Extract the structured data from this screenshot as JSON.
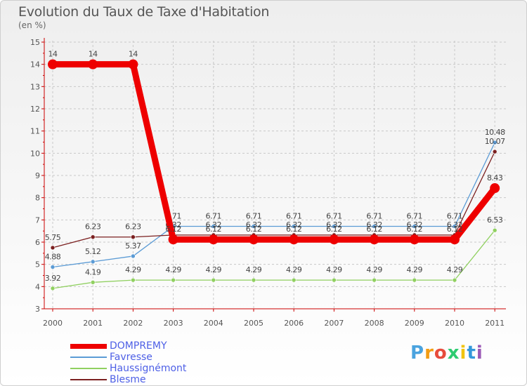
{
  "chart_data": {
    "type": "line",
    "title": "Evolution du Taux de Taxe d'Habitation",
    "subtitle": "(en %)",
    "x": [
      "2000",
      "2001",
      "2002",
      "2003",
      "2004",
      "2005",
      "2006",
      "2007",
      "2008",
      "2009",
      "2010",
      "2011"
    ],
    "ylim": [
      3,
      15
    ],
    "yticks": [
      "3",
      "4",
      "5",
      "6",
      "7",
      "8",
      "9",
      "10",
      "11",
      "12",
      "13",
      "14",
      "15"
    ],
    "grid": true,
    "legend_position": "bottom-left",
    "series": [
      {
        "name": "Favresse",
        "color": "#5b9bd5",
        "values": [
          4.88,
          5.12,
          5.37,
          6.71,
          6.71,
          6.71,
          6.71,
          6.71,
          6.71,
          6.71,
          6.71,
          10.48
        ],
        "labels": [
          "4.88",
          "5.12",
          "5.37",
          "6.71",
          "6.71",
          "6.71",
          "6.71",
          "6.71",
          "6.71",
          "6.71",
          "6.71",
          "10.48"
        ]
      },
      {
        "name": "Haussignémont",
        "color": "#90d060",
        "values": [
          3.92,
          4.19,
          4.29,
          4.29,
          4.29,
          4.29,
          4.29,
          4.29,
          4.29,
          4.29,
          4.29,
          6.53
        ],
        "labels": [
          "3.92",
          "4.19",
          "4.29",
          "4.29",
          "4.29",
          "4.29",
          "4.29",
          "4.29",
          "4.29",
          "4.29",
          "4.29",
          "6.53"
        ]
      },
      {
        "name": "Blesme",
        "color": "#7b2020",
        "values": [
          5.75,
          6.23,
          6.23,
          6.32,
          6.32,
          6.32,
          6.32,
          6.32,
          6.32,
          6.32,
          6.32,
          10.07
        ],
        "labels": [
          "5.75",
          "6.23",
          "6.23",
          "6.32",
          "6.32",
          "6.32",
          "6.32",
          "6.32",
          "6.32",
          "6.32",
          "6.32",
          "10.07"
        ]
      },
      {
        "name": "DOMPREMY",
        "color": "#ee0000",
        "values": [
          14,
          14,
          14,
          6.12,
          6.12,
          6.12,
          6.12,
          6.12,
          6.12,
          6.12,
          6.12,
          8.43
        ],
        "labels": [
          "14",
          "14",
          "14",
          "6.12",
          "6.12",
          "6.12",
          "6.12",
          "6.12",
          "6.12",
          "6.12",
          "6.12",
          "8.43"
        ]
      }
    ]
  },
  "legend": {
    "items": [
      {
        "label": "DOMPREMY",
        "color": "#ee0000"
      },
      {
        "label": "Favresse",
        "color": "#5b9bd5"
      },
      {
        "label": "Haussignémont",
        "color": "#90d060"
      },
      {
        "label": "Blesme",
        "color": "#7b2020"
      }
    ]
  },
  "logo": {
    "letters": [
      "P",
      "r",
      "o",
      "x",
      "i",
      "t",
      "i"
    ],
    "colors": [
      "#4aa3df",
      "#f39c12",
      "#e74c3c",
      "#2ecc71",
      "#f1c40f",
      "#3498db",
      "#9b59b6"
    ]
  }
}
